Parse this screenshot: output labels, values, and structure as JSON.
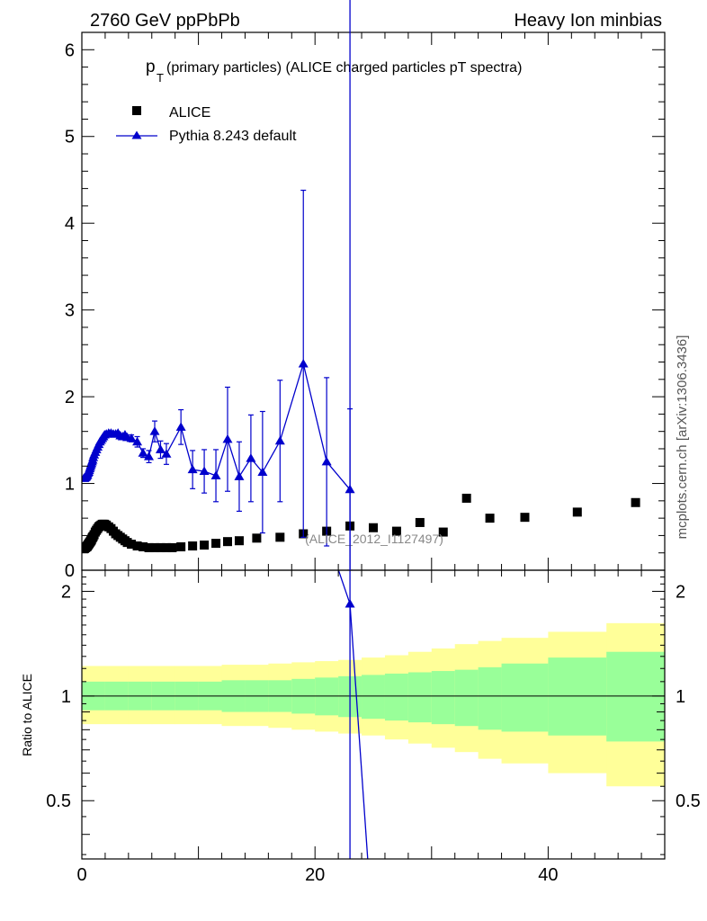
{
  "header": {
    "left": "2760 GeV ppPbPb",
    "right": "Heavy Ion minbias",
    "side_label": "mcplots.cern.ch [arXiv:1306.3436]"
  },
  "chart_data": {
    "type": "scatter",
    "title": "(primary particles) (ALICE charged particles pT spectra)",
    "title_symbol": "p",
    "title_subscript": "T",
    "analysis_label": "(ALICE_2012_I1127497)",
    "main_panel": {
      "xlim": [
        0,
        50
      ],
      "ylim": [
        0,
        6.2
      ],
      "y_ticks": [
        0,
        1,
        2,
        3,
        4,
        5,
        6
      ],
      "legend": [
        {
          "name": "ALICE",
          "marker": "square",
          "color": "#000000"
        },
        {
          "name": "Pythia 8.243 default",
          "marker": "triangle",
          "color": "#0000cc"
        }
      ],
      "series": [
        {
          "name": "ALICE",
          "x": [
            0.175,
            0.225,
            0.275,
            0.325,
            0.375,
            0.425,
            0.475,
            0.525,
            0.575,
            0.625,
            0.675,
            0.725,
            0.775,
            0.825,
            0.875,
            0.925,
            0.975,
            1.05,
            1.15,
            1.25,
            1.35,
            1.45,
            1.55,
            1.65,
            1.75,
            1.85,
            1.95,
            2.1,
            2.3,
            2.5,
            2.7,
            2.9,
            3.1,
            3.3,
            3.5,
            3.7,
            3.9,
            4.25,
            4.75,
            5.25,
            5.75,
            6.25,
            6.75,
            7.25,
            7.75,
            8.5,
            9.5,
            10.5,
            11.5,
            12.5,
            13.5,
            15.0,
            17.0,
            19.0,
            21.0,
            23.0,
            25.0,
            27.0,
            29.0,
            31.0,
            33.0,
            35.0,
            38.0,
            42.5,
            47.5
          ],
          "y": [
            0.25,
            0.25,
            0.26,
            0.26,
            0.27,
            0.27,
            0.28,
            0.29,
            0.3,
            0.31,
            0.32,
            0.33,
            0.34,
            0.35,
            0.37,
            0.38,
            0.39,
            0.41,
            0.44,
            0.46,
            0.48,
            0.5,
            0.51,
            0.52,
            0.53,
            0.53,
            0.53,
            0.52,
            0.5,
            0.48,
            0.45,
            0.42,
            0.4,
            0.38,
            0.36,
            0.34,
            0.32,
            0.3,
            0.28,
            0.27,
            0.26,
            0.26,
            0.26,
            0.26,
            0.26,
            0.27,
            0.28,
            0.29,
            0.31,
            0.33,
            0.34,
            0.37,
            0.38,
            0.42,
            0.45,
            0.51,
            0.49,
            0.45,
            0.55,
            0.44,
            0.83,
            0.6,
            0.61,
            0.67,
            0.78
          ]
        },
        {
          "name": "Pythia 8.243 default",
          "x": [
            0.175,
            0.225,
            0.275,
            0.325,
            0.375,
            0.425,
            0.475,
            0.525,
            0.575,
            0.625,
            0.675,
            0.725,
            0.775,
            0.825,
            0.875,
            0.925,
            0.975,
            1.05,
            1.15,
            1.25,
            1.35,
            1.45,
            1.55,
            1.65,
            1.75,
            1.85,
            1.95,
            2.1,
            2.3,
            2.5,
            2.7,
            2.9,
            3.1,
            3.3,
            3.5,
            3.7,
            3.9,
            4.25,
            4.75,
            5.25,
            5.75,
            6.25,
            6.75,
            7.25,
            8.5,
            9.5,
            10.5,
            11.5,
            12.5,
            13.5,
            14.5,
            15.5,
            17.0,
            19.0,
            21.0,
            23.0
          ],
          "y": [
            1.06,
            1.06,
            1.07,
            1.07,
            1.08,
            1.09,
            1.1,
            1.12,
            1.13,
            1.15,
            1.17,
            1.19,
            1.21,
            1.23,
            1.25,
            1.27,
            1.3,
            1.33,
            1.36,
            1.39,
            1.42,
            1.45,
            1.48,
            1.5,
            1.52,
            1.54,
            1.56,
            1.57,
            1.58,
            1.58,
            1.57,
            1.57,
            1.58,
            1.55,
            1.54,
            1.56,
            1.53,
            1.52,
            1.48,
            1.35,
            1.31,
            1.6,
            1.39,
            1.34,
            1.65,
            1.16,
            1.14,
            1.09,
            1.51,
            1.08,
            1.29,
            1.13,
            1.49,
            2.38,
            1.25,
            0.93
          ],
          "yerr": [
            0,
            0,
            0,
            0,
            0,
            0,
            0,
            0,
            0,
            0,
            0,
            0,
            0,
            0,
            0,
            0,
            0,
            0,
            0,
            0,
            0,
            0,
            0,
            0,
            0,
            0,
            0,
            0,
            0,
            0,
            0,
            0,
            0,
            0,
            0,
            0,
            0,
            0.04,
            0.06,
            0.05,
            0.07,
            0.12,
            0.1,
            0.12,
            0.2,
            0.22,
            0.25,
            0.3,
            0.6,
            0.4,
            0.5,
            0.7,
            0.7,
            2.0,
            0.97,
            0.93
          ]
        }
      ]
    },
    "ratio_panel": {
      "ylabel": "Ratio to ALICE",
      "xlim": [
        0,
        50
      ],
      "ylim": [
        0.34,
        2.3
      ],
      "y_ticks": [
        0.5,
        1,
        2
      ],
      "y_tick_labels": [
        "0.5",
        "1",
        "2"
      ],
      "x_ticks": [
        0,
        20,
        40
      ],
      "reference": 1.0,
      "bands": {
        "x_edges": [
          0,
          2,
          4,
          6,
          8,
          10,
          12,
          14,
          16,
          18,
          20,
          22,
          24,
          26,
          28,
          30,
          32,
          34,
          36,
          40,
          45,
          50
        ],
        "stat_syst_low": [
          0.83,
          0.83,
          0.83,
          0.83,
          0.83,
          0.83,
          0.82,
          0.82,
          0.81,
          0.8,
          0.79,
          0.78,
          0.77,
          0.75,
          0.73,
          0.71,
          0.69,
          0.66,
          0.64,
          0.6,
          0.55,
          0.55
        ],
        "stat_syst_high": [
          1.22,
          1.22,
          1.22,
          1.22,
          1.22,
          1.22,
          1.23,
          1.23,
          1.24,
          1.25,
          1.26,
          1.27,
          1.29,
          1.31,
          1.34,
          1.37,
          1.41,
          1.44,
          1.47,
          1.53,
          1.62,
          1.62
        ],
        "stat_low": [
          0.91,
          0.91,
          0.91,
          0.91,
          0.91,
          0.91,
          0.9,
          0.9,
          0.9,
          0.89,
          0.88,
          0.87,
          0.86,
          0.85,
          0.84,
          0.83,
          0.82,
          0.8,
          0.79,
          0.77,
          0.74,
          0.74
        ],
        "stat_high": [
          1.1,
          1.1,
          1.1,
          1.1,
          1.1,
          1.1,
          1.11,
          1.11,
          1.11,
          1.12,
          1.13,
          1.14,
          1.15,
          1.16,
          1.17,
          1.18,
          1.19,
          1.21,
          1.24,
          1.29,
          1.34,
          1.34
        ],
        "outer_color": "#ffff99",
        "inner_color": "#99ff99"
      },
      "pythia_ratio": {
        "x": [
          21.0,
          23.0,
          25.0
        ],
        "y": [
          2.9,
          1.84,
          0.2
        ]
      }
    },
    "x_axis_ticks": [
      0,
      20,
      40
    ],
    "grid": false,
    "legend_position": "top-left",
    "colors": {
      "alice": "#000000",
      "pythia": "#0000cc",
      "reference": "#000000"
    }
  }
}
